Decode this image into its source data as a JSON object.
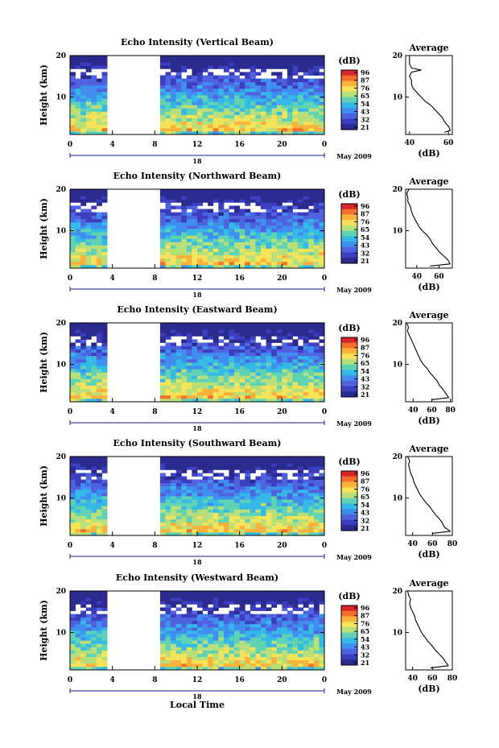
{
  "figure": {
    "xlabel": "Local Time",
    "date_label": "May 2009",
    "day_label": "18",
    "colorbar_unit": "(dB)",
    "colorbar_ticks": [
      "96",
      "87",
      "76",
      "65",
      "54",
      "43",
      "32",
      "21"
    ],
    "colorbar_colors": [
      "#d6262b",
      "#f2702b",
      "#fbb13a",
      "#f5e35a",
      "#b8e07a",
      "#5fd3b4",
      "#35b9e6",
      "#3f8ef0",
      "#4f63e0",
      "#3b3fbf",
      "#2a2a8f"
    ],
    "gap_start_hour": 3.3,
    "gap_end_hour": 8.6
  },
  "chart_data": [
    {
      "type": "heatmap",
      "title": "Echo Intensity (Vertical Beam)",
      "ylabel": "Height (km)",
      "x_ticks": [
        "0",
        "4",
        "8",
        "12",
        "16",
        "20",
        "0"
      ],
      "y_ticks": [
        "20",
        "10"
      ],
      "xlim": [
        0,
        24
      ],
      "ylim": [
        1,
        20
      ],
      "profile": {
        "title": "Average",
        "xlabel": "(dB)",
        "x_ticks": [
          "40",
          "60"
        ],
        "y_ticks": [
          "20",
          "10"
        ],
        "xlim": [
          38,
          62
        ],
        "heights": [
          1.5,
          2,
          3,
          4,
          5,
          6,
          7,
          8,
          9,
          10,
          11,
          12,
          13,
          14,
          15,
          16,
          16.5,
          17,
          18,
          19,
          20
        ],
        "values": [
          58,
          61,
          60,
          58,
          57,
          55,
          53,
          51,
          48,
          46,
          44,
          42,
          41,
          41,
          40,
          41,
          46,
          41,
          40,
          40,
          40
        ]
      }
    },
    {
      "type": "heatmap",
      "title": "Echo Intensity (Northward Beam)",
      "ylabel": "Height (km)",
      "x_ticks": [
        "0",
        "4",
        "8",
        "12",
        "16",
        "20",
        "0"
      ],
      "y_ticks": [
        "20",
        "10"
      ],
      "xlim": [
        0,
        24
      ],
      "ylim": [
        1,
        20
      ],
      "profile": {
        "title": "Average",
        "xlabel": "(dB)",
        "x_ticks": [
          "40",
          "60"
        ],
        "y_ticks": [
          "20",
          "10"
        ],
        "xlim": [
          30,
          72
        ],
        "heights": [
          1.5,
          2,
          3,
          4,
          5,
          6,
          7,
          8,
          9,
          10,
          11,
          12,
          13,
          14,
          15,
          16,
          17,
          18,
          19,
          20
        ],
        "values": [
          52,
          70,
          68,
          64,
          60,
          57,
          54,
          52,
          49,
          45,
          42,
          40,
          38,
          36,
          35,
          34,
          32,
          32,
          31,
          33
        ]
      }
    },
    {
      "type": "heatmap",
      "title": "Echo Intensity (Eastward Beam)",
      "ylabel": "Height (km)",
      "x_ticks": [
        "0",
        "4",
        "8",
        "12",
        "16",
        "20",
        "0"
      ],
      "y_ticks": [
        "20",
        "10"
      ],
      "xlim": [
        0,
        24
      ],
      "ylim": [
        1,
        20
      ],
      "profile": {
        "title": "Average",
        "xlabel": "(dB)",
        "x_ticks": [
          "40",
          "60",
          "80"
        ],
        "y_ticks": [
          "20",
          "10"
        ],
        "xlim": [
          32,
          82
        ],
        "heights": [
          1.5,
          2,
          3,
          4,
          5,
          6,
          7,
          8,
          9,
          10,
          11,
          12,
          13,
          14,
          15,
          16,
          17,
          18,
          19,
          20
        ],
        "values": [
          60,
          78,
          75,
          72,
          68,
          66,
          62,
          58,
          55,
          51,
          48,
          46,
          44,
          42,
          40,
          38,
          36,
          34,
          35,
          33
        ]
      }
    },
    {
      "type": "heatmap",
      "title": "Echo Intensity (Southward Beam)",
      "ylabel": "Height (km)",
      "x_ticks": [
        "0",
        "4",
        "8",
        "12",
        "16",
        "20",
        "0"
      ],
      "y_ticks": [
        "20",
        "10"
      ],
      "xlim": [
        0,
        24
      ],
      "ylim": [
        1,
        20
      ],
      "profile": {
        "title": "Average",
        "xlabel": "(dB)",
        "x_ticks": [
          "40",
          "60",
          "80"
        ],
        "y_ticks": [
          "20",
          "10"
        ],
        "xlim": [
          33,
          80
        ],
        "heights": [
          1.5,
          2,
          3,
          4,
          5,
          6,
          7,
          8,
          9,
          10,
          11,
          12,
          13,
          14,
          15,
          16,
          17,
          18,
          19,
          20
        ],
        "values": [
          60,
          78,
          72,
          70,
          67,
          63,
          60,
          57,
          53,
          50,
          47,
          45,
          43,
          41,
          40,
          38,
          37,
          36,
          37,
          35
        ]
      }
    },
    {
      "type": "heatmap",
      "title": "Echo Intensity (Westward Beam)",
      "ylabel": "Height (km)",
      "x_ticks": [
        "0",
        "4",
        "8",
        "12",
        "16",
        "20",
        "0"
      ],
      "y_ticks": [
        "20",
        "10"
      ],
      "xlim": [
        0,
        24
      ],
      "ylim": [
        1,
        20
      ],
      "profile": {
        "title": "Average",
        "xlabel": "(dB)",
        "x_ticks": [
          "40",
          "60",
          "80"
        ],
        "y_ticks": [
          "20",
          "10"
        ],
        "xlim": [
          33,
          80
        ],
        "heights": [
          1.5,
          2,
          3,
          4,
          5,
          6,
          7,
          8,
          9,
          10,
          11,
          12,
          13,
          14,
          15,
          16,
          17,
          18,
          19,
          20
        ],
        "values": [
          58,
          76,
          73,
          70,
          66,
          62,
          59,
          55,
          52,
          49,
          47,
          45,
          43,
          42,
          40,
          38,
          37,
          38,
          36,
          35
        ]
      }
    }
  ]
}
